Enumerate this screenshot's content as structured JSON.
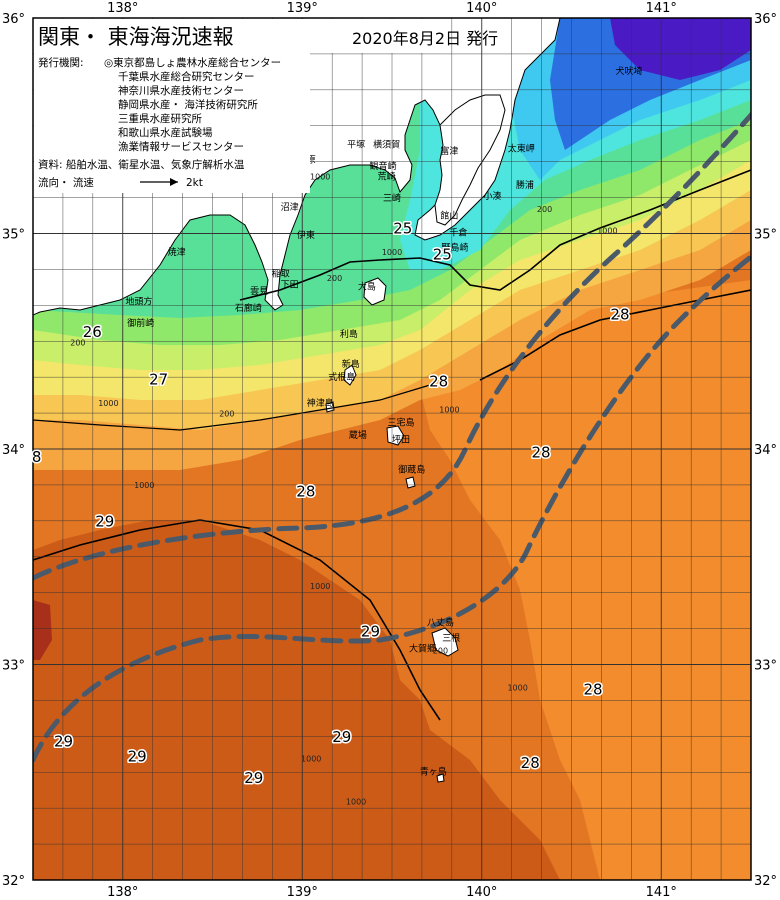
{
  "header": {
    "title": "関東・ 東海海況速報",
    "date": "2020年8月2日 発行"
  },
  "info": {
    "issuer_label": "発行機関:",
    "issuers": [
      "◎東京都島しょ農林水産総合センター",
      "千葉県水産総合研究センター",
      "神奈川県水産技術センター",
      "静岡県水産・ 海洋技術研究所",
      "三重県水産研究所",
      "和歌山県水産試験場",
      "漁業情報サービスセンター"
    ],
    "source": "資料: 船舶水温、衛星水温、気象庁解析水温",
    "flow_label": "流向・ 流速",
    "flow_scale": "2kt"
  },
  "axes": {
    "lon_ticks": [
      "138°",
      "139°",
      "140°",
      "141°"
    ],
    "lat_ticks": [
      "36°",
      "35°",
      "34°",
      "33°",
      "32°"
    ],
    "lon_range": [
      137.5,
      141.5
    ],
    "lat_range": [
      32,
      36
    ]
  },
  "isotherm_labels": [
    {
      "text": "25",
      "lon": 139.56,
      "lat": 35.0
    },
    {
      "text": "25",
      "lon": 139.78,
      "lat": 34.88
    },
    {
      "text": "26",
      "lon": 137.83,
      "lat": 34.52
    },
    {
      "text": "27",
      "lon": 138.2,
      "lat": 34.3
    },
    {
      "text": "28",
      "lon": 139.76,
      "lat": 34.29
    },
    {
      "text": "28",
      "lon": 140.77,
      "lat": 34.6
    },
    {
      "text": "28",
      "lon": 140.33,
      "lat": 33.96
    },
    {
      "text": "28",
      "lon": 139.02,
      "lat": 33.78
    },
    {
      "text": "8",
      "lon": 137.52,
      "lat": 33.94
    },
    {
      "text": "29",
      "lon": 137.9,
      "lat": 33.64
    },
    {
      "text": "29",
      "lon": 139.38,
      "lat": 33.13
    },
    {
      "text": "28",
      "lon": 140.62,
      "lat": 32.86
    },
    {
      "text": "29",
      "lon": 137.67,
      "lat": 32.62
    },
    {
      "text": "29",
      "lon": 138.08,
      "lat": 32.55
    },
    {
      "text": "29",
      "lon": 139.22,
      "lat": 32.64
    },
    {
      "text": "29",
      "lon": 138.73,
      "lat": 32.45
    },
    {
      "text": "28",
      "lon": 140.27,
      "lat": 32.52
    }
  ],
  "place_names": [
    {
      "text": "犬吠埼",
      "lon": 140.82,
      "lat": 35.74
    },
    {
      "text": "太東岬",
      "lon": 140.22,
      "lat": 35.38
    },
    {
      "text": "勝浦",
      "lon": 140.24,
      "lat": 35.21
    },
    {
      "text": "小湊",
      "lon": 140.06,
      "lat": 35.16
    },
    {
      "text": "富津",
      "lon": 139.82,
      "lat": 35.37
    },
    {
      "text": "館山",
      "lon": 139.82,
      "lat": 35.07
    },
    {
      "text": "千倉",
      "lon": 139.87,
      "lat": 34.99
    },
    {
      "text": "野島崎",
      "lon": 139.85,
      "lat": 34.92
    },
    {
      "text": "平塚",
      "lon": 139.3,
      "lat": 35.4
    },
    {
      "text": "横須賀",
      "lon": 139.47,
      "lat": 35.4
    },
    {
      "text": "小田原",
      "lon": 139.0,
      "lat": 35.33
    },
    {
      "text": "観音崎",
      "lon": 139.45,
      "lat": 35.3
    },
    {
      "text": "荒崎",
      "lon": 139.47,
      "lat": 35.25
    },
    {
      "text": "三崎",
      "lon": 139.5,
      "lat": 35.15
    },
    {
      "text": "沼津",
      "lon": 138.93,
      "lat": 35.11
    },
    {
      "text": "伊東",
      "lon": 139.02,
      "lat": 34.98
    },
    {
      "text": "焼津",
      "lon": 138.3,
      "lat": 34.9
    },
    {
      "text": "稲取",
      "lon": 138.88,
      "lat": 34.8
    },
    {
      "text": "下田",
      "lon": 138.93,
      "lat": 34.75
    },
    {
      "text": "雲見",
      "lon": 138.76,
      "lat": 34.72
    },
    {
      "text": "石廊崎",
      "lon": 138.7,
      "lat": 34.64
    },
    {
      "text": "大島",
      "lon": 139.36,
      "lat": 34.74
    },
    {
      "text": "地頭方",
      "lon": 138.09,
      "lat": 34.67
    },
    {
      "text": "御前崎",
      "lon": 138.1,
      "lat": 34.57
    },
    {
      "text": "利島",
      "lon": 139.26,
      "lat": 34.52
    },
    {
      "text": "新島",
      "lon": 139.27,
      "lat": 34.38
    },
    {
      "text": "式根島",
      "lon": 139.22,
      "lat": 34.32
    },
    {
      "text": "神津島",
      "lon": 139.1,
      "lat": 34.2
    },
    {
      "text": "三宅島",
      "lon": 139.55,
      "lat": 34.11
    },
    {
      "text": "御蔵島",
      "lon": 139.61,
      "lat": 33.89
    },
    {
      "text": "蔵場",
      "lon": 139.31,
      "lat": 34.05
    },
    {
      "text": "坪田",
      "lon": 139.55,
      "lat": 34.03
    },
    {
      "text": "八丈島",
      "lon": 139.77,
      "lat": 33.18
    },
    {
      "text": "三根",
      "lon": 139.83,
      "lat": 33.11
    },
    {
      "text": "大賀郷",
      "lon": 139.67,
      "lat": 33.06
    },
    {
      "text": "青ヶ島",
      "lon": 139.73,
      "lat": 32.49
    }
  ],
  "depth_labels": [
    {
      "text": "1000",
      "lon": 139.1,
      "lat": 35.25
    },
    {
      "text": "1000",
      "lon": 140.7,
      "lat": 35.0
    },
    {
      "text": "1000",
      "lon": 139.82,
      "lat": 34.17
    },
    {
      "text": "1000",
      "lon": 138.12,
      "lat": 33.82
    },
    {
      "text": "1000",
      "lon": 139.1,
      "lat": 33.35
    },
    {
      "text": "1000",
      "lon": 140.2,
      "lat": 32.88
    },
    {
      "text": "1000",
      "lon": 139.05,
      "lat": 32.55
    },
    {
      "text": "1000",
      "lon": 139.3,
      "lat": 32.35
    },
    {
      "text": "200",
      "lon": 140.35,
      "lat": 35.1
    },
    {
      "text": "200",
      "lon": 139.18,
      "lat": 34.78
    },
    {
      "text": "200",
      "lon": 137.75,
      "lat": 34.48
    },
    {
      "text": "200",
      "lon": 138.58,
      "lat": 34.15
    },
    {
      "text": "200",
      "lon": 139.77,
      "lat": 33.05
    },
    {
      "text": "1000",
      "lon": 139.5,
      "lat": 34.9
    },
    {
      "text": "1000",
      "lon": 137.92,
      "lat": 34.2
    }
  ],
  "colors": {
    "deep_blue": "#4a1bc4",
    "blue": "#2c6fe0",
    "cyan": "#3fc8f0",
    "aqua": "#4ee5de",
    "green": "#58e098",
    "light_green": "#8fe86a",
    "yellow_green": "#c9ee6a",
    "yellow": "#f4e66a",
    "light_orange": "#f7c653",
    "orange": "#f6a640",
    "orange2": "#f28c2c",
    "dark_orange": "#e37623",
    "burnt": "#cc5b18",
    "rust": "#b8481a",
    "red": "#a8301a",
    "land": "#ffffff",
    "current": "#4a5a6a",
    "grid": "#333333"
  }
}
